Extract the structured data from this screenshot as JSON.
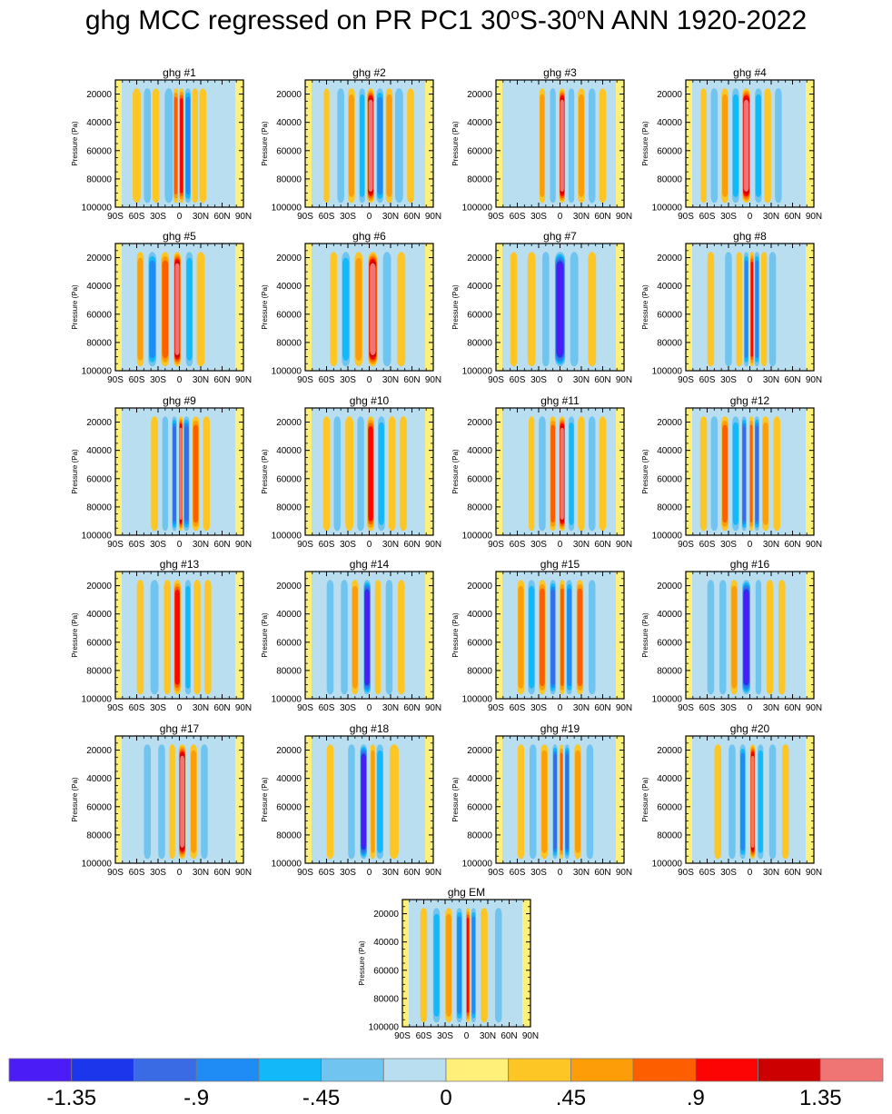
{
  "title": {
    "prefix": "ghg MCC regressed on PR PC1 30",
    "sup1": "o",
    "mid": "S-30",
    "sup2": "o",
    "suffix": "N ANN 1920-2022"
  },
  "chart_data": {
    "type": "heatmap",
    "panel_titles": [
      "ghg #1",
      "ghg #2",
      "ghg #3",
      "ghg #4",
      "ghg #5",
      "ghg #6",
      "ghg #7",
      "ghg #8",
      "ghg #9",
      "ghg #10",
      "ghg #11",
      "ghg #12",
      "ghg #13",
      "ghg #14",
      "ghg #15",
      "ghg #16",
      "ghg #17",
      "ghg #18",
      "ghg #19",
      "ghg #20",
      "ghg EM"
    ],
    "xticks": [
      "90S",
      "60S",
      "30S",
      "0",
      "30N",
      "60N",
      "90N"
    ],
    "xtick_values": [
      -90,
      -60,
      -30,
      0,
      30,
      60,
      90
    ],
    "yticks": [
      "20000",
      "40000",
      "60000",
      "80000",
      "100000"
    ],
    "ytick_values": [
      20000,
      40000,
      60000,
      80000,
      100000
    ],
    "ylabel": "Pressure (Pa)",
    "xlim": [
      -90,
      90
    ],
    "ylim": [
      100000,
      10000
    ],
    "colorbar": {
      "colors": [
        "#4b1cf6",
        "#1c36ec",
        "#3a6ae4",
        "#1f8cf6",
        "#12b8f8",
        "#6fc4f0",
        "#b8def0",
        "#fff07a",
        "#fdc624",
        "#fd9e08",
        "#fc5e00",
        "#fc0404",
        "#cc0000",
        "#ef7474"
      ],
      "labels": [
        "-1.35",
        "-.9",
        "-.45",
        "0",
        ".45",
        ".9",
        "1.35"
      ],
      "label_values": [
        -1.35,
        -0.9,
        -0.45,
        0,
        0.45,
        0.9,
        1.35
      ]
    },
    "panels": [
      {
        "bands": [
          {
            "c": -60,
            "w": 7,
            "v": 0.45
          },
          {
            "c": -45,
            "w": 6,
            "v": -0.45
          },
          {
            "c": -33,
            "w": 6,
            "v": 0.45
          },
          {
            "c": -15,
            "w": 7,
            "v": -0.45
          },
          {
            "c": -5,
            "w": 4,
            "v": 0.75
          },
          {
            "c": 3,
            "w": 4,
            "v": 1.0
          },
          {
            "c": 12,
            "w": 5,
            "v": -0.75
          },
          {
            "c": 22,
            "w": 5,
            "v": 0.45
          },
          {
            "c": 33,
            "w": 6,
            "v": 0.45
          }
        ]
      },
      {
        "bands": [
          {
            "c": -60,
            "w": 5,
            "v": 0.3
          },
          {
            "c": -40,
            "w": 6,
            "v": -0.45
          },
          {
            "c": -25,
            "w": 6,
            "v": 0.6
          },
          {
            "c": -10,
            "w": 5,
            "v": -0.6
          },
          {
            "c": 2,
            "w": 6,
            "v": 1.5
          },
          {
            "c": 15,
            "w": 6,
            "v": -0.75
          },
          {
            "c": 28,
            "w": 6,
            "v": 0.6
          },
          {
            "c": 42,
            "w": 7,
            "v": -0.45
          },
          {
            "c": 58,
            "w": 6,
            "v": 0.45
          }
        ]
      },
      {
        "bands": [
          {
            "c": -25,
            "w": 5,
            "v": 0.6
          },
          {
            "c": -10,
            "w": 5,
            "v": -0.45
          },
          {
            "c": 3,
            "w": 5,
            "v": 1.5
          },
          {
            "c": 16,
            "w": 5,
            "v": -0.45
          },
          {
            "c": 30,
            "w": 6,
            "v": 0.6
          },
          {
            "c": 45,
            "w": 6,
            "v": -0.3
          },
          {
            "c": 60,
            "w": 6,
            "v": 0.45
          }
        ]
      },
      {
        "bands": [
          {
            "c": -65,
            "w": 5,
            "v": 0.3
          },
          {
            "c": -50,
            "w": 6,
            "v": -0.45
          },
          {
            "c": -35,
            "w": 6,
            "v": 0.6
          },
          {
            "c": -20,
            "w": 6,
            "v": -0.6
          },
          {
            "c": -5,
            "w": 7,
            "v": 1.5
          },
          {
            "c": 12,
            "w": 6,
            "v": -0.6
          },
          {
            "c": 25,
            "w": 6,
            "v": 0.45
          },
          {
            "c": 40,
            "w": 6,
            "v": -0.3
          }
        ]
      },
      {
        "bands": [
          {
            "c": -55,
            "w": 6,
            "v": 0.6
          },
          {
            "c": -38,
            "w": 7,
            "v": -0.75
          },
          {
            "c": -20,
            "w": 7,
            "v": 0.9
          },
          {
            "c": -3,
            "w": 6,
            "v": 1.5
          },
          {
            "c": 14,
            "w": 6,
            "v": -0.6
          },
          {
            "c": 30,
            "w": 7,
            "v": 0.45
          }
        ]
      },
      {
        "bands": [
          {
            "c": -50,
            "w": 6,
            "v": 0.45
          },
          {
            "c": -33,
            "w": 7,
            "v": -0.6
          },
          {
            "c": -15,
            "w": 7,
            "v": 0.6
          },
          {
            "c": 5,
            "w": 8,
            "v": 1.5
          },
          {
            "c": 25,
            "w": 7,
            "v": -0.45
          },
          {
            "c": 45,
            "w": 7,
            "v": 0.3
          }
        ]
      },
      {
        "bands": [
          {
            "c": -65,
            "w": 6,
            "v": 0.3
          },
          {
            "c": -40,
            "w": 7,
            "v": 0.3
          },
          {
            "c": -20,
            "w": 6,
            "v": -0.45
          },
          {
            "c": 0,
            "w": 9,
            "v": -1.45
          },
          {
            "c": 20,
            "w": 7,
            "v": -0.3
          },
          {
            "c": 45,
            "w": 7,
            "v": 0.3
          }
        ]
      },
      {
        "bands": [
          {
            "c": -55,
            "w": 6,
            "v": 0.3
          },
          {
            "c": -30,
            "w": 6,
            "v": -0.45
          },
          {
            "c": -15,
            "w": 5,
            "v": 0.45
          },
          {
            "c": -5,
            "w": 4,
            "v": -0.75
          },
          {
            "c": 3,
            "w": 3,
            "v": 1.2
          },
          {
            "c": 10,
            "w": 4,
            "v": -0.75
          },
          {
            "c": 20,
            "w": 5,
            "v": 0.45
          },
          {
            "c": 32,
            "w": 6,
            "v": -0.3
          }
        ]
      },
      {
        "bands": [
          {
            "c": -35,
            "w": 6,
            "v": 0.3
          },
          {
            "c": -20,
            "w": 5,
            "v": -0.45
          },
          {
            "c": -7,
            "w": 4,
            "v": -1.1
          },
          {
            "c": 2,
            "w": 3,
            "v": 1.5
          },
          {
            "c": 10,
            "w": 5,
            "v": -1.1
          },
          {
            "c": 23,
            "w": 6,
            "v": 0.75
          },
          {
            "c": 38,
            "w": 6,
            "v": 0.45
          }
        ]
      },
      {
        "bands": [
          {
            "c": -60,
            "w": 6,
            "v": 0.45
          },
          {
            "c": -45,
            "w": 6,
            "v": -0.45
          },
          {
            "c": -28,
            "w": 7,
            "v": 0.45
          },
          {
            "c": -12,
            "w": 6,
            "v": -0.45
          },
          {
            "c": 2,
            "w": 6,
            "v": 1.05
          },
          {
            "c": 17,
            "w": 6,
            "v": -0.6
          },
          {
            "c": 32,
            "w": 6,
            "v": 0.45
          },
          {
            "c": 48,
            "w": 6,
            "v": 0.3
          }
        ]
      },
      {
        "bands": [
          {
            "c": -40,
            "w": 5,
            "v": 0.45
          },
          {
            "c": -25,
            "w": 6,
            "v": -0.45
          },
          {
            "c": -10,
            "w": 5,
            "v": 0.75
          },
          {
            "c": 3,
            "w": 5,
            "v": 1.5
          },
          {
            "c": 16,
            "w": 5,
            "v": -0.6
          },
          {
            "c": 30,
            "w": 6,
            "v": 0.45
          },
          {
            "c": 45,
            "w": 6,
            "v": -0.45
          },
          {
            "c": 60,
            "w": 6,
            "v": 0.45
          }
        ]
      },
      {
        "bands": [
          {
            "c": -65,
            "w": 6,
            "v": 0.3
          },
          {
            "c": -50,
            "w": 6,
            "v": -0.45
          },
          {
            "c": -35,
            "w": 6,
            "v": 0.75
          },
          {
            "c": -20,
            "w": 6,
            "v": -0.6
          },
          {
            "c": -8,
            "w": 4,
            "v": -1.2
          },
          {
            "c": 2,
            "w": 3,
            "v": 0.9
          },
          {
            "c": 10,
            "w": 4,
            "v": -1.0
          },
          {
            "c": 22,
            "w": 6,
            "v": 0.6
          },
          {
            "c": 38,
            "w": 6,
            "v": 0.45
          }
        ]
      },
      {
        "bands": [
          {
            "c": -55,
            "w": 6,
            "v": 0.45
          },
          {
            "c": -35,
            "w": 7,
            "v": -0.45
          },
          {
            "c": -17,
            "w": 6,
            "v": 0.45
          },
          {
            "c": -3,
            "w": 6,
            "v": 1.05
          },
          {
            "c": 12,
            "w": 5,
            "v": -0.6
          },
          {
            "c": 25,
            "w": 6,
            "v": 0.45
          },
          {
            "c": 40,
            "w": 6,
            "v": 0.3
          }
        ]
      },
      {
        "bands": [
          {
            "c": -55,
            "w": 6,
            "v": -0.3
          },
          {
            "c": -35,
            "w": 6,
            "v": -0.3
          },
          {
            "c": -20,
            "w": 6,
            "v": 0.6
          },
          {
            "c": -3,
            "w": 6,
            "v": -1.45
          },
          {
            "c": 12,
            "w": 5,
            "v": 0.3
          },
          {
            "c": 28,
            "w": 6,
            "v": -0.3
          },
          {
            "c": 45,
            "w": 6,
            "v": 0.3
          }
        ]
      },
      {
        "bands": [
          {
            "c": -55,
            "w": 6,
            "v": 0.6
          },
          {
            "c": -40,
            "w": 6,
            "v": -0.6
          },
          {
            "c": -25,
            "w": 6,
            "v": 0.75
          },
          {
            "c": -10,
            "w": 5,
            "v": -1.0
          },
          {
            "c": 3,
            "w": 4,
            "v": 0.9
          },
          {
            "c": 13,
            "w": 5,
            "v": -0.9
          },
          {
            "c": 28,
            "w": 6,
            "v": 0.75
          },
          {
            "c": 45,
            "w": 6,
            "v": -0.45
          }
        ]
      },
      {
        "bands": [
          {
            "c": -55,
            "w": 6,
            "v": -0.3
          },
          {
            "c": -38,
            "w": 6,
            "v": -0.45
          },
          {
            "c": -22,
            "w": 6,
            "v": 0.6
          },
          {
            "c": -5,
            "w": 7,
            "v": -1.45
          },
          {
            "c": 12,
            "w": 5,
            "v": -0.45
          },
          {
            "c": 28,
            "w": 6,
            "v": 0.45
          },
          {
            "c": 45,
            "w": 6,
            "v": 0.45
          }
        ]
      },
      {
        "bands": [
          {
            "c": -45,
            "w": 6,
            "v": -0.3
          },
          {
            "c": -25,
            "w": 6,
            "v": -0.45
          },
          {
            "c": -10,
            "w": 5,
            "v": 0.3
          },
          {
            "c": 4,
            "w": 6,
            "v": 1.5
          },
          {
            "c": 20,
            "w": 6,
            "v": 0.6
          },
          {
            "c": 35,
            "w": 6,
            "v": -0.3
          }
        ]
      },
      {
        "bands": [
          {
            "c": -55,
            "w": 6,
            "v": 0.3
          },
          {
            "c": -25,
            "w": 6,
            "v": -0.45
          },
          {
            "c": -8,
            "w": 6,
            "v": -1.45
          },
          {
            "c": 5,
            "w": 4,
            "v": 0.6
          },
          {
            "c": 15,
            "w": 6,
            "v": -0.6
          },
          {
            "c": 35,
            "w": 8,
            "v": 0.45
          }
        ]
      },
      {
        "bands": [
          {
            "c": -55,
            "w": 6,
            "v": 0.45
          },
          {
            "c": -38,
            "w": 6,
            "v": -0.45
          },
          {
            "c": -22,
            "w": 6,
            "v": 0.6
          },
          {
            "c": -7,
            "w": 4,
            "v": -1.1
          },
          {
            "c": 2,
            "w": 3,
            "v": 0.9
          },
          {
            "c": 10,
            "w": 4,
            "v": -1.1
          },
          {
            "c": 25,
            "w": 6,
            "v": 0.6
          },
          {
            "c": 42,
            "w": 6,
            "v": -0.3
          }
        ]
      },
      {
        "bands": [
          {
            "c": -45,
            "w": 6,
            "v": 0.3
          },
          {
            "c": -25,
            "w": 6,
            "v": -0.45
          },
          {
            "c": -10,
            "w": 5,
            "v": -0.75
          },
          {
            "c": 4,
            "w": 4,
            "v": 1.5
          },
          {
            "c": 15,
            "w": 5,
            "v": -0.6
          },
          {
            "c": 32,
            "w": 6,
            "v": -0.3
          },
          {
            "c": 50,
            "w": 6,
            "v": 0.3
          }
        ]
      },
      {
        "bands": [
          {
            "c": -60,
            "w": 6,
            "v": 0.45
          },
          {
            "c": -42,
            "w": 6,
            "v": -0.6
          },
          {
            "c": -25,
            "w": 6,
            "v": 0.6
          },
          {
            "c": -10,
            "w": 5,
            "v": -0.75
          },
          {
            "c": 2,
            "w": 3,
            "v": 1.05
          },
          {
            "c": 10,
            "w": 4,
            "v": -0.75
          },
          {
            "c": 25,
            "w": 6,
            "v": 0.45
          },
          {
            "c": 45,
            "w": 6,
            "v": -0.3
          }
        ]
      }
    ]
  }
}
